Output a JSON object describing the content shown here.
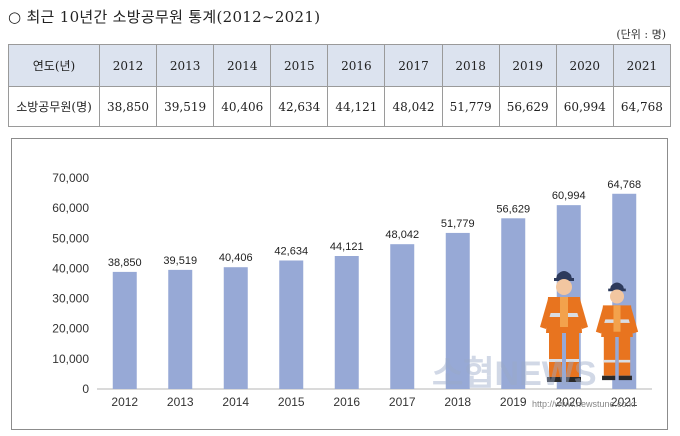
{
  "title": "○ 최근 10년간 소방공무원 통계(2012~2021)",
  "unit": "(단위 : 명)",
  "table": {
    "header_label": "연도(년)",
    "row_label": "소방공무원(명)",
    "years": [
      "2012",
      "2013",
      "2014",
      "2015",
      "2016",
      "2017",
      "2018",
      "2019",
      "2020",
      "2021"
    ],
    "values": [
      "38,850",
      "39,519",
      "40,406",
      "42,634",
      "44,121",
      "48,042",
      "51,779",
      "56,629",
      "60,994",
      "64,768"
    ]
  },
  "watermark": {
    "brand": "소협NEWS",
    "url": "http://www.newstune.co.kr"
  },
  "chart_data": {
    "type": "bar",
    "categories": [
      "2012",
      "2013",
      "2014",
      "2015",
      "2016",
      "2017",
      "2018",
      "2019",
      "2020",
      "2021"
    ],
    "values": [
      38850,
      39519,
      40406,
      42634,
      44121,
      48042,
      51779,
      56629,
      60994,
      64768
    ],
    "value_labels": [
      "38,850",
      "39,519",
      "40,406",
      "42,634",
      "44,121",
      "48,042",
      "51,779",
      "56,629",
      "60,994",
      "64,768"
    ],
    "yticks": [
      "0",
      "10,000",
      "20,000",
      "30,000",
      "40,000",
      "50,000",
      "60,000",
      "70,000"
    ],
    "ylim": [
      0,
      70000
    ],
    "bar_color": "#97a9d6",
    "grid": false,
    "legend": "none"
  }
}
